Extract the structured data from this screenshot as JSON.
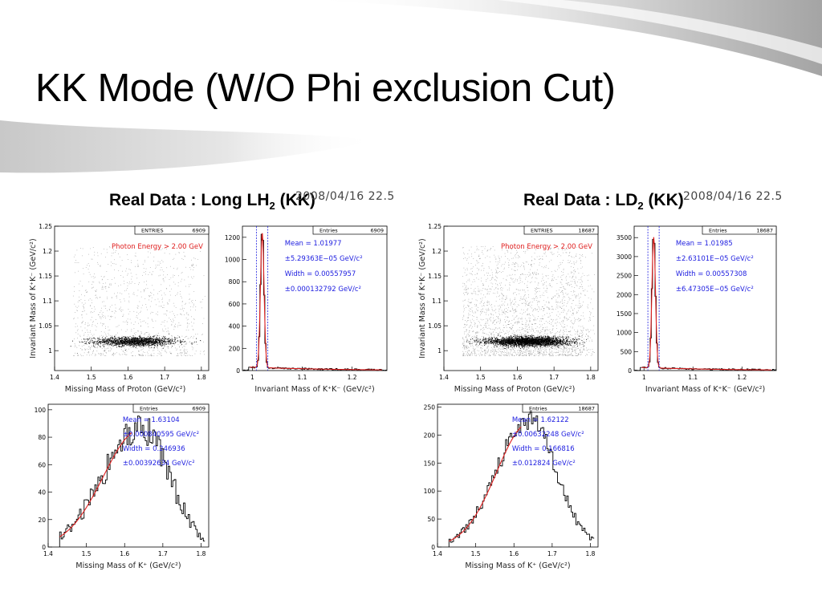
{
  "slide": {
    "title": "KK Mode (W/O Phi exclusion Cut)"
  },
  "panels": [
    {
      "id": "lh2",
      "title": {
        "prefix": "Real Data : Long LH",
        "sub": "2",
        "suffix": " (KK)"
      },
      "datestamp": "2008/04/16   22.5"
    },
    {
      "id": "ld2",
      "title": {
        "prefix": "Real Data : LD",
        "sub": "2",
        "suffix": " (KK)"
      },
      "datestamp": "2008/04/16   22.5"
    }
  ],
  "chart_data": [
    {
      "type": "scatter",
      "panel": "Real Data : Long LH2 (KK)",
      "xlabel": "Missing Mass of Proton (GeV/c²)",
      "ylabel": "Invariant Mass of K⁺K⁻ (GeV/c²)",
      "xlim": [
        1.4,
        1.82
      ],
      "ylim": [
        0.96,
        1.25
      ],
      "xticks": [
        "1.4",
        "1.5",
        "1.6",
        "1.7",
        "1.8"
      ],
      "yticks": [
        "1",
        "1.05",
        "1.1",
        "1.15",
        "1.2",
        "1.25"
      ],
      "stats": {
        "label": "ENTRIES",
        "value": "6909"
      },
      "annotation": "Photon Energy > 2.00 GeV",
      "band": {
        "y": 1.019,
        "x_center": 1.62
      },
      "density": "medium"
    },
    {
      "type": "histogram",
      "panel": "Real Data : Long LH2 (KK)",
      "xlabel": "Invariant Mass of K⁺K⁻ (GeV/c²)",
      "xlim": [
        0.98,
        1.27
      ],
      "ylim": [
        0,
        1300
      ],
      "xticks": [
        "1",
        "1.1",
        "1.2"
      ],
      "yticks": [
        "0",
        "200",
        "400",
        "600",
        "800",
        "1000",
        "1200"
      ],
      "stats": {
        "label": "Entries",
        "value": "6909"
      },
      "fit": [
        "Mean = 1.01977",
        "±5.29363E−05 GeV/c²",
        "Width = 0.00557957",
        "±0.000132792 GeV/c²"
      ],
      "peak": {
        "mean": 1.01977,
        "width": 0.00558,
        "height": 1250,
        "background": 30
      },
      "cut_lines": [
        1.008,
        1.031
      ]
    },
    {
      "type": "scatter",
      "panel": "Real Data : LD2 (KK)",
      "xlabel": "Missing Mass of Proton (GeV/c²)",
      "ylabel": "Invariant Mass of K⁺K⁻ (GeV/c²)",
      "xlim": [
        1.4,
        1.82
      ],
      "ylim": [
        0.96,
        1.25
      ],
      "xticks": [
        "1.4",
        "1.5",
        "1.6",
        "1.7",
        "1.8"
      ],
      "yticks": [
        "1",
        "1.05",
        "1.1",
        "1.15",
        "1.2",
        "1.25"
      ],
      "stats": {
        "label": "ENTRIES",
        "value": "18687"
      },
      "annotation": "Photon Energy > 2.00 GeV",
      "band": {
        "y": 1.019,
        "x_center": 1.63
      },
      "density": "high"
    },
    {
      "type": "histogram",
      "panel": "Real Data : LD2 (KK)",
      "xlabel": "Invariant Mass of K⁺K⁻ (GeV/c²)",
      "xlim": [
        0.98,
        1.27
      ],
      "ylim": [
        0,
        3800
      ],
      "xticks": [
        "1",
        "1.1",
        "1.2"
      ],
      "yticks": [
        "0",
        "500",
        "1000",
        "1500",
        "2000",
        "2500",
        "3000",
        "3500"
      ],
      "stats": {
        "label": "Entries",
        "value": "18687"
      },
      "fit": [
        "Mean = 1.01985",
        "±2.63101E−05 GeV/c²",
        "Width = 0.00557308",
        "±6.47305E−05 GeV/c²"
      ],
      "peak": {
        "mean": 1.01985,
        "width": 0.00557,
        "height": 3550,
        "background": 80
      },
      "cut_lines": [
        1.008,
        1.031
      ]
    },
    {
      "type": "histogram",
      "panel": "Real Data : Long LH2 (KK)",
      "xlabel": "Missing Mass of K⁺ (GeV/c²)",
      "xlim": [
        1.4,
        1.82
      ],
      "ylim": [
        0,
        104
      ],
      "xticks": [
        "1.4",
        "1.5",
        "1.6",
        "1.7",
        "1.8"
      ],
      "yticks": [
        "0",
        "20",
        "40",
        "60",
        "80",
        "100"
      ],
      "stats": {
        "label": "Entries",
        "value": "6909"
      },
      "fit": [
        "Mean = 1.63104",
        "±0.000840595 GeV/c²",
        "Width = 0.246936",
        "±0.00392634 GeV/c²"
      ],
      "shape": {
        "peak_x": 1.64,
        "peak_y": 88,
        "rise": 0.095,
        "fall": 0.075,
        "start": 1.43,
        "end": 1.81
      }
    },
    {
      "type": "histogram",
      "panel": "Real Data : LD2 (KK)",
      "xlabel": "Missing Mass of K⁺ (GeV/c²)",
      "xlim": [
        1.4,
        1.82
      ],
      "ylim": [
        0,
        255
      ],
      "xticks": [
        "1.4",
        "1.5",
        "1.6",
        "1.7",
        "1.8"
      ],
      "yticks": [
        "0",
        "50",
        "100",
        "150",
        "200",
        "250"
      ],
      "stats": {
        "label": "Entries",
        "value": "18687"
      },
      "fit": [
        "Mean = 1.62122",
        "±0.00632248 GeV/c²",
        "Width = 0.166816",
        "±0.012824 GeV/c²"
      ],
      "shape": {
        "peak_x": 1.64,
        "peak_y": 228,
        "rise": 0.085,
        "fall": 0.07,
        "start": 1.43,
        "end": 1.81
      }
    }
  ]
}
